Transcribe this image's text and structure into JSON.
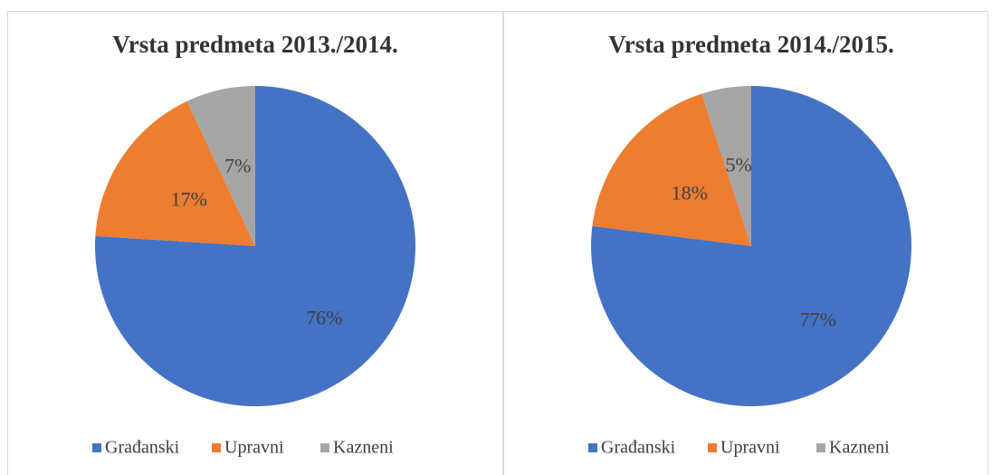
{
  "chart_data": [
    {
      "type": "pie",
      "title": "Vrsta predmeta 2013./2014.",
      "categories": [
        "Građanski",
        "Upravni",
        "Kazneni"
      ],
      "values": [
        76,
        17,
        7
      ],
      "value_labels": [
        "76%",
        "17%",
        "7%"
      ],
      "colors": [
        "#4472c4",
        "#ed7d31",
        "#a5a5a5"
      ]
    },
    {
      "type": "pie",
      "title": "Vrsta predmeta 2014./2015.",
      "categories": [
        "Građanski",
        "Upravni",
        "Kazneni"
      ],
      "values": [
        77,
        18,
        5
      ],
      "value_labels": [
        "77%",
        "18%",
        "5%"
      ],
      "colors": [
        "#4472c4",
        "#ed7d31",
        "#a5a5a5"
      ]
    }
  ]
}
